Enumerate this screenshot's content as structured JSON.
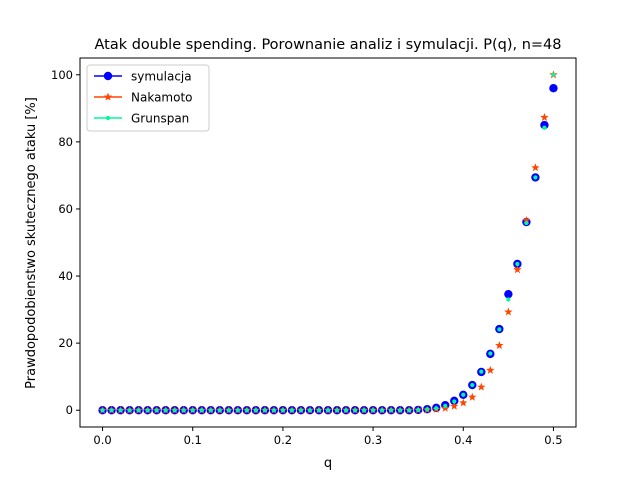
{
  "chart_data": {
    "type": "scatter",
    "title": "Atak double spending. Porownanie analiz i symulacji. P(q), n=48",
    "xlabel": "q",
    "ylabel": "Prawdopodobienstwo skutecznego ataku [%]",
    "xlim": [
      -0.025,
      0.525
    ],
    "ylim": [
      -5,
      105
    ],
    "xticks": [
      0.0,
      0.1,
      0.2,
      0.3,
      0.4,
      0.5
    ],
    "xtick_labels": [
      "0.0",
      "0.1",
      "0.2",
      "0.3",
      "0.4",
      "0.5"
    ],
    "yticks": [
      0,
      20,
      40,
      60,
      80,
      100
    ],
    "ytick_labels": [
      "0",
      "20",
      "40",
      "60",
      "80",
      "100"
    ],
    "grid": false,
    "legend_position": "top-left",
    "x": [
      0.0,
      0.01,
      0.02,
      0.03,
      0.04,
      0.05,
      0.06,
      0.07,
      0.08,
      0.09,
      0.1,
      0.11,
      0.12,
      0.13,
      0.14,
      0.15,
      0.16,
      0.17,
      0.18,
      0.19,
      0.2,
      0.21,
      0.22,
      0.23,
      0.24,
      0.25,
      0.26,
      0.27,
      0.28,
      0.29,
      0.3,
      0.31,
      0.32,
      0.33,
      0.34,
      0.35,
      0.36,
      0.37,
      0.38,
      0.39,
      0.4,
      0.41,
      0.42,
      0.43,
      0.44,
      0.45,
      0.46,
      0.47,
      0.48,
      0.49,
      0.5
    ],
    "series": [
      {
        "name": "symulacja",
        "color": "#0000ff",
        "marker": "circle",
        "values": [
          0,
          0,
          0,
          0,
          0,
          0,
          0,
          0,
          0,
          0,
          0,
          0,
          0,
          0,
          0,
          0,
          0,
          0,
          0,
          0,
          0,
          0,
          0,
          0,
          0,
          0,
          0,
          0,
          0,
          0,
          0,
          0,
          0,
          0,
          0,
          0.1,
          0.3,
          0.7,
          1.5,
          2.8,
          4.6,
          7.5,
          11.4,
          16.8,
          24.2,
          34.6,
          43.6,
          56.1,
          69.4,
          85.0,
          96.0
        ]
      },
      {
        "name": "Nakamoto",
        "color": "#ff4500",
        "marker": "star",
        "values": [
          0,
          0,
          0,
          0,
          0,
          0,
          0,
          0,
          0,
          0,
          0,
          0,
          0,
          0,
          0,
          0,
          0,
          0,
          0,
          0,
          0,
          0,
          0,
          0,
          0,
          0,
          0,
          0,
          0,
          0,
          0,
          0,
          0,
          0,
          0,
          0.05,
          0.1,
          0.3,
          0.6,
          1.2,
          2.2,
          3.9,
          6.9,
          11.9,
          19.3,
          29.3,
          41.9,
          56.6,
          72.3,
          87.3,
          100
        ]
      },
      {
        "name": "Grunspan",
        "color": "#00fa9a",
        "marker": "dot",
        "values": [
          0,
          0,
          0,
          0,
          0,
          0,
          0,
          0,
          0,
          0,
          0,
          0,
          0,
          0,
          0,
          0,
          0,
          0,
          0,
          0,
          0,
          0,
          0,
          0,
          0,
          0,
          0,
          0,
          0,
          0,
          0,
          0,
          0,
          0,
          0,
          0.1,
          0.3,
          0.6,
          1.3,
          2.6,
          4.6,
          7.5,
          11.5,
          16.9,
          24.1,
          33.0,
          43.6,
          55.8,
          69.4,
          84.2,
          100
        ]
      }
    ]
  }
}
